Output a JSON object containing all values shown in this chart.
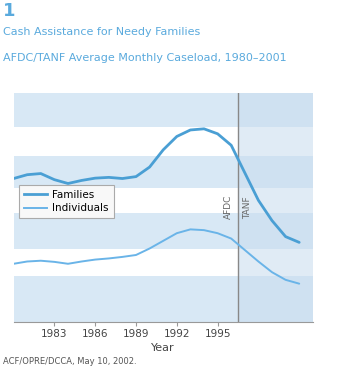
{
  "title_line1": "Cash Assistance for Needy Families",
  "title_line2": "AFDC/TANF Average Monthly Caseload, 1980–2001",
  "figure_label": "1",
  "xlabel": "Year",
  "source": "ACF/OPRE/DCCA, May 10, 2002.",
  "legend_entries": [
    "Families",
    "Individuals"
  ],
  "families_color": "#4a9fd4",
  "individuals_color": "#6ab4e8",
  "afdc_tanf_divider": 1996.5,
  "afdc_label": "AFDC",
  "tanf_label": "TANF",
  "xlim": [
    1980,
    2002
  ],
  "ylim": [
    0,
    6.0
  ],
  "band_color": "#d8e8f5",
  "background_color": "#ffffff",
  "title_color": "#5aaadd",
  "divider_color": "#888888",
  "years_families": [
    1980,
    1981,
    1982,
    1983,
    1984,
    1985,
    1986,
    1987,
    1988,
    1989,
    1990,
    1991,
    1992,
    1993,
    1994,
    1995,
    1996,
    1997,
    1998,
    1999,
    2000,
    2001
  ],
  "values_families": [
    3.75,
    3.85,
    3.88,
    3.72,
    3.62,
    3.7,
    3.76,
    3.78,
    3.75,
    3.8,
    4.05,
    4.5,
    4.85,
    5.02,
    5.05,
    4.92,
    4.62,
    3.9,
    3.18,
    2.65,
    2.23,
    2.08
  ],
  "years_individuals": [
    1980,
    1981,
    1982,
    1983,
    1984,
    1985,
    1986,
    1987,
    1988,
    1989,
    1990,
    1991,
    1992,
    1993,
    1994,
    1995,
    1996,
    1997,
    1998,
    1999,
    2000,
    2001
  ],
  "values_individuals": [
    1.52,
    1.58,
    1.6,
    1.57,
    1.52,
    1.58,
    1.63,
    1.66,
    1.7,
    1.75,
    1.92,
    2.12,
    2.32,
    2.42,
    2.4,
    2.32,
    2.18,
    1.88,
    1.58,
    1.3,
    1.1,
    1.0
  ],
  "xtick_years": [
    1983,
    1986,
    1989,
    1992,
    1995
  ],
  "band_yranges": [
    [
      0.0,
      1.2
    ],
    [
      1.9,
      2.85
    ],
    [
      3.5,
      4.35
    ],
    [
      5.1,
      6.0
    ]
  ],
  "tanf_band_color": "#c8dcee"
}
